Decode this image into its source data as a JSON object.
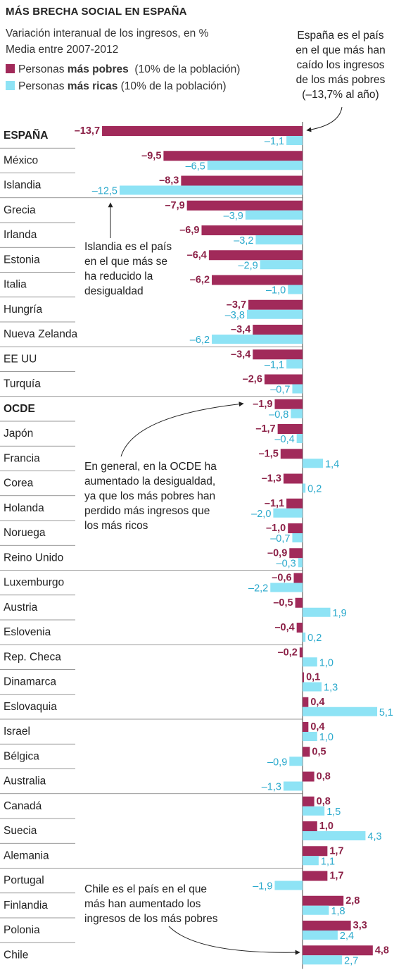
{
  "title": "MÁS BRECHA SOCIAL EN ESPAÑA",
  "subtitle_line1": "Variación interanual de los ingresos, en %",
  "subtitle_line2": "Media entre 2007-2012",
  "legend": {
    "poor": {
      "prefix": "Personas ",
      "bold": "más pobres",
      "suffix": "  (10% de la población)",
      "color": "#a12a5a"
    },
    "rich": {
      "prefix": "Personas ",
      "bold": "más ricas",
      "suffix": " (10% de la población)",
      "color": "#8ee3f5"
    }
  },
  "annotations": {
    "spain": [
      "España es el país",
      "en el que más han",
      "caído los ingresos",
      "de los más pobres",
      "(–13,7% al año)"
    ],
    "iceland": [
      "Islandia es el país",
      "en el que más se",
      "ha reducido la",
      "desigualdad"
    ],
    "ocde": [
      "En general, en la OCDE ha",
      "aumentado la desigualdad,",
      "ya que los más pobres han",
      "perdido más ingresos que",
      "los más ricos"
    ],
    "chile": [
      "Chile es el país en el que",
      "más han aumentado los",
      "ingresos de los más pobres"
    ]
  },
  "chart_data": {
    "type": "bar",
    "orientation": "horizontal",
    "series": [
      {
        "name": "Personas más pobres (10% de la población)",
        "color": "#a12a5a"
      },
      {
        "name": "Personas más ricas (10% de la población)",
        "color": "#8ee3f5"
      }
    ],
    "categories": [
      "ESPAÑA",
      "México",
      "Islandia",
      "Grecia",
      "Irlanda",
      "Estonia",
      "Italia",
      "Hungría",
      "Nueva Zelanda",
      "EE UU",
      "Turquía",
      "OCDE",
      "Japón",
      "Francia",
      "Corea",
      "Holanda",
      "Noruega",
      "Reino Unido",
      "Luxemburgo",
      "Austria",
      "Eslovenia",
      "Rep. Checa",
      "Dinamarca",
      "Eslovaquia",
      "Israel",
      "Bélgica",
      "Australia",
      "Canadá",
      "Suecia",
      "Alemania",
      "Portugal",
      "Finlandia",
      "Polonia",
      "Chile"
    ],
    "poor": [
      -13.7,
      -9.5,
      -8.3,
      -7.9,
      -6.9,
      -6.4,
      -6.2,
      -3.7,
      -3.4,
      -3.4,
      -2.6,
      -1.9,
      -1.7,
      -1.5,
      -1.3,
      -1.1,
      -1.0,
      -0.9,
      -0.6,
      -0.5,
      -0.4,
      -0.2,
      0.1,
      0.4,
      0.4,
      0.5,
      0.8,
      0.8,
      1.0,
      1.7,
      1.7,
      2.8,
      3.3,
      4.8
    ],
    "rich": [
      -1.1,
      -6.5,
      -12.5,
      -3.9,
      -3.2,
      -2.9,
      -1.0,
      -3.8,
      -6.2,
      -1.1,
      -0.7,
      -0.8,
      -0.4,
      1.4,
      0.2,
      -2.0,
      -0.7,
      -0.3,
      -2.2,
      1.9,
      0.2,
      1.0,
      1.3,
      5.1,
      1.0,
      -0.9,
      -1.3,
      1.5,
      4.3,
      1.1,
      -1.9,
      1.8,
      2.4,
      2.7
    ],
    "poor_labels": [
      "–13,7",
      "–9,5",
      "–8,3",
      "–7,9",
      "–6,9",
      "–6,4",
      "–6,2",
      "–3,7",
      "–3,4",
      "–3,4",
      "–2,6",
      "–1,9",
      "–1,7",
      "–1,5",
      "–1,3",
      "–1,1",
      "–1,0",
      "–0,9",
      "–0,6",
      "–0,5",
      "–0,4",
      "–0,2",
      "0,1",
      "0,4",
      "0,4",
      "0,5",
      "0,8",
      "0,8",
      "1,0",
      "1,7",
      "1,7",
      "2,8",
      "3,3",
      "4,8"
    ],
    "rich_labels": [
      "–1,1",
      "–6,5",
      "–12,5",
      "–3,9",
      "–3,2",
      "–2,9",
      "–1,0",
      "–3,8",
      "–6,2",
      "–1,1",
      "–0,7",
      "–0,8",
      "–0,4",
      "1,4",
      "0,2",
      "–2,0",
      "–0,7",
      "–0,3",
      "–2,2",
      "1,9",
      "0,2",
      "1,0",
      "1,3",
      "5,1",
      "1,0",
      "–0,9",
      "–1,3",
      "1,5",
      "4,3",
      "1,1",
      "–1,9",
      "1,8",
      "2,4",
      "2,7"
    ],
    "bold_categories": [
      "ESPAÑA",
      "OCDE"
    ]
  }
}
